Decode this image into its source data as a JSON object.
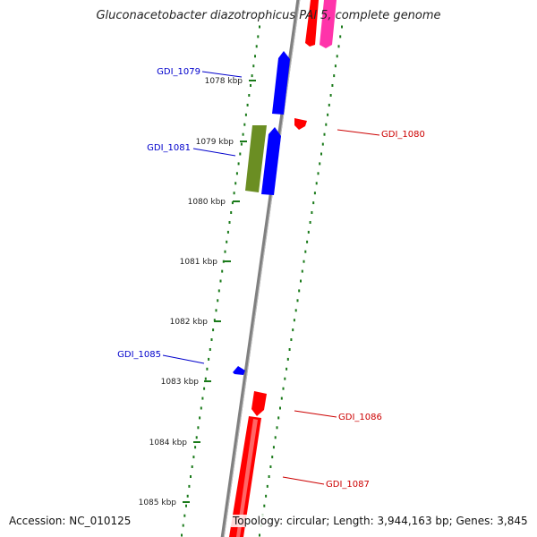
{
  "title": "Gluconacetobacter diazotrophicus PAl 5, complete genome",
  "footer": {
    "accession": "Accession: NC_010125",
    "summary": "Topology: circular; Length: 3,944,163 bp; Genes: 3,845"
  },
  "colors": {
    "backbone": "#808080",
    "tick_dots": "#1a7a1a",
    "forward_gene": "#0000ff",
    "reverse_gene": "#ff0000",
    "magenta_gene": "#ff33aa",
    "olive_gene": "#6b8e23",
    "forward_label": "#0000cc",
    "reverse_label": "#cc0000"
  },
  "ticks": [
    {
      "label": "1078 kbp"
    },
    {
      "label": "1079 kbp"
    },
    {
      "label": "1080 kbp"
    },
    {
      "label": "1081 kbp"
    },
    {
      "label": "1082 kbp"
    },
    {
      "label": "1083 kbp"
    },
    {
      "label": "1084 kbp"
    },
    {
      "label": "1085 kbp"
    }
  ],
  "gene_labels": [
    {
      "text": "GDI_1079",
      "strand": "forward"
    },
    {
      "text": "GDI_1081",
      "strand": "forward"
    },
    {
      "text": "GDI_1085",
      "strand": "forward"
    },
    {
      "text": "GDI_1080",
      "strand": "reverse"
    },
    {
      "text": "GDI_1086",
      "strand": "reverse"
    },
    {
      "text": "GDI_1087",
      "strand": "reverse"
    }
  ]
}
